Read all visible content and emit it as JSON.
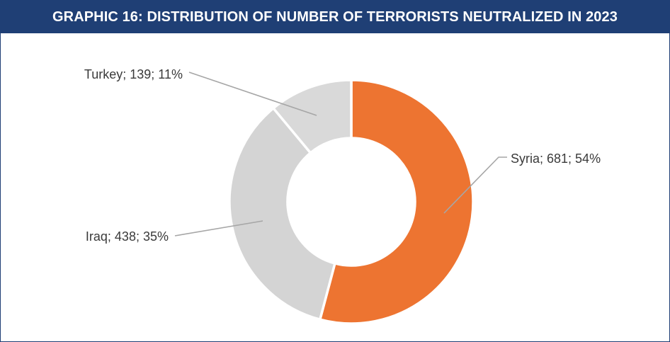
{
  "header": {
    "title": "GRAPHIC 16: DISTRIBUTION OF NUMBER OF TERRORISTS NEUTRALIZED IN 2023"
  },
  "colors": {
    "header_bg": "#1f3f75",
    "header_text": "#ffffff",
    "syria": "#ed7431",
    "iraq": "#d4d4d4",
    "turkey": "#d9d9d9",
    "leader_line": "#a6a6a6"
  },
  "chart_data": {
    "type": "pie",
    "style": "donut",
    "slices": [
      {
        "label": "Syria",
        "value": 681,
        "percent": 54,
        "color": "#ed7431",
        "data_label": "Syria; 681; 54%"
      },
      {
        "label": "Iraq",
        "value": 438,
        "percent": 35,
        "color": "#d4d4d4",
        "data_label": "Iraq; 438; 35%"
      },
      {
        "label": "Turkey",
        "value": 139,
        "percent": 11,
        "color": "#d9d9d9",
        "data_label": "Turkey; 139; 11%"
      }
    ],
    "legend": "none"
  }
}
